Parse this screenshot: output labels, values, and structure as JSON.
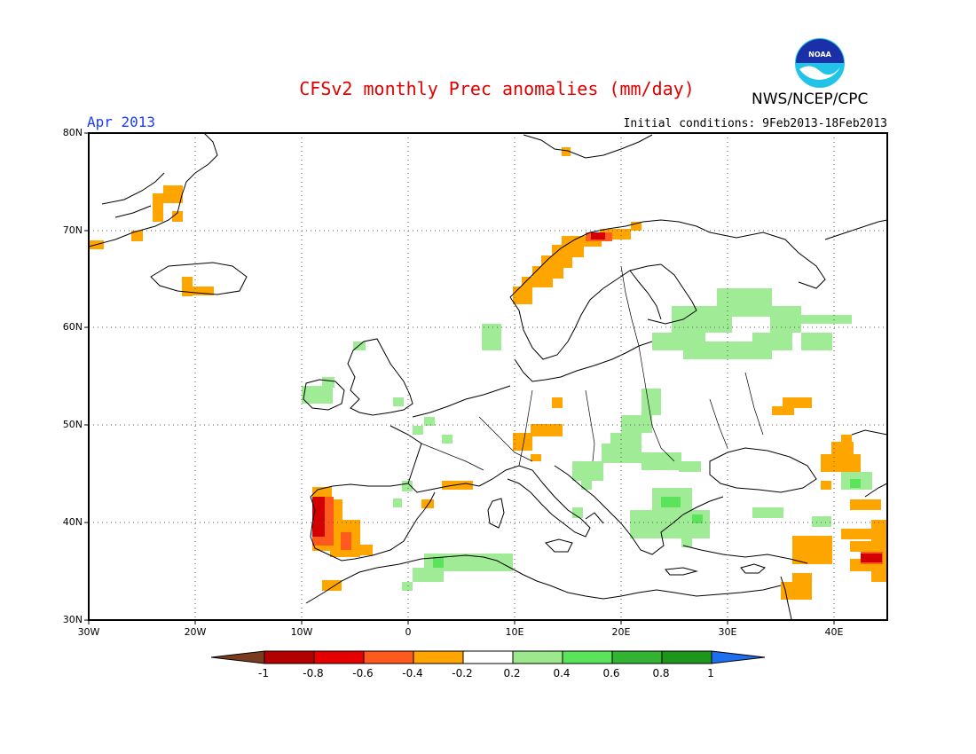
{
  "header": {
    "title": "CFSv2 monthly Prec anomalies (mm/day)",
    "valid_month": "Apr 2013",
    "initial_conditions": "Initial conditions: 9Feb2013-18Feb2013",
    "agency": "NWS/NCEP/CPC",
    "logo_text": "NOAA"
  },
  "map": {
    "region": "Europe",
    "lat_labels": [
      "80N",
      "70N",
      "60N",
      "50N",
      "40N",
      "30N"
    ],
    "lon_labels": [
      "30W",
      "20W",
      "10W",
      "0",
      "10E",
      "20E",
      "30E",
      "40E"
    ]
  },
  "colorbar": {
    "labels": [
      "-1",
      "-0.8",
      "-0.6",
      "-0.4",
      "-0.2",
      "0.2",
      "0.4",
      "0.6",
      "0.8",
      "1"
    ],
    "colors": [
      "#7a3c1e",
      "#b40000",
      "#e60000",
      "#ff5a1e",
      "#ffa500",
      "#ffffff",
      "#9be98c",
      "#5ce35c",
      "#32b432",
      "#1e961e",
      "#1e6ef0"
    ]
  },
  "anomaly_patches": {
    "dry_orange": "#ffa500",
    "dry_darkorange": "#ff5a1e",
    "dry_red": "#d20000",
    "wet_lightgreen": "#a0eb96",
    "wet_green": "#5ce35c"
  }
}
